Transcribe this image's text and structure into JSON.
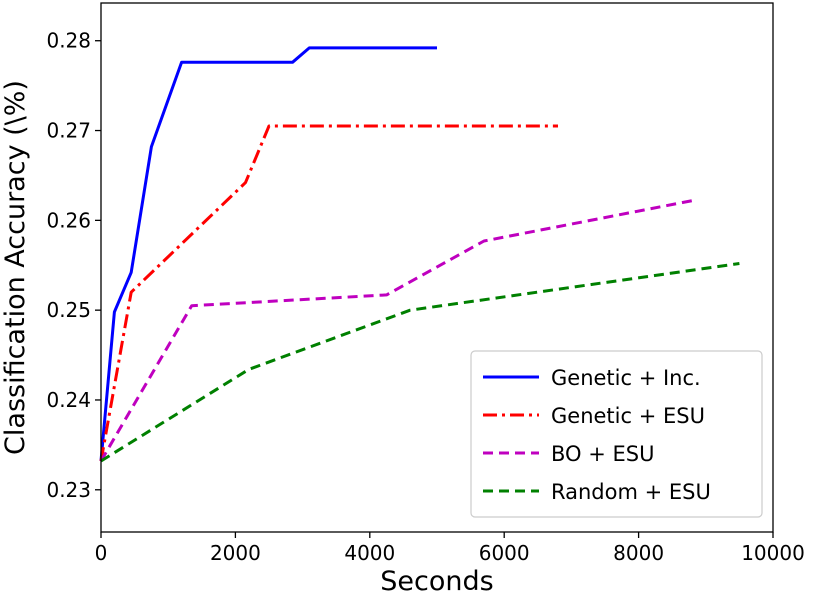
{
  "chart_data": {
    "type": "line",
    "xlabel": "Seconds",
    "ylabel": "Classification Accuracy (\\%)",
    "xlim": [
      0,
      10000
    ],
    "ylim": [
      0.2253,
      0.2842
    ],
    "xticks": [
      0,
      2000,
      4000,
      6000,
      8000,
      10000
    ],
    "xtick_labels": [
      "0",
      "2000",
      "4000",
      "6000",
      "8000",
      "10000"
    ],
    "yticks": [
      0.23,
      0.24,
      0.25,
      0.26,
      0.27,
      0.28
    ],
    "ytick_labels": [
      "0.23",
      "0.24",
      "0.25",
      "0.26",
      "0.27",
      "0.28"
    ],
    "grid": false,
    "legend_position": "lower-right",
    "series": [
      {
        "name": "Genetic + Inc.",
        "color": "#0000ff",
        "style": "solid",
        "x": [
          0,
          200,
          450,
          750,
          1200,
          2850,
          3100,
          5000
        ],
        "y": [
          0.2332,
          0.2498,
          0.2542,
          0.2682,
          0.2776,
          0.2776,
          0.2792,
          0.2792
        ]
      },
      {
        "name": "Genetic + ESU",
        "color": "#ff0000",
        "style": "dashdot",
        "x": [
          0,
          450,
          2150,
          2500,
          6800
        ],
        "y": [
          0.2332,
          0.252,
          0.2642,
          0.2705,
          0.2705
        ]
      },
      {
        "name": "BO + ESU",
        "color": "#bf00bf",
        "style": "dashed",
        "x": [
          0,
          1350,
          4250,
          5700,
          8800
        ],
        "y": [
          0.2332,
          0.2505,
          0.2517,
          0.2577,
          0.2622
        ]
      },
      {
        "name": "Random + ESU",
        "color": "#008000",
        "style": "dashed",
        "x": [
          0,
          2200,
          4600,
          9500
        ],
        "y": [
          0.2332,
          0.2434,
          0.25,
          0.2552
        ]
      }
    ]
  }
}
